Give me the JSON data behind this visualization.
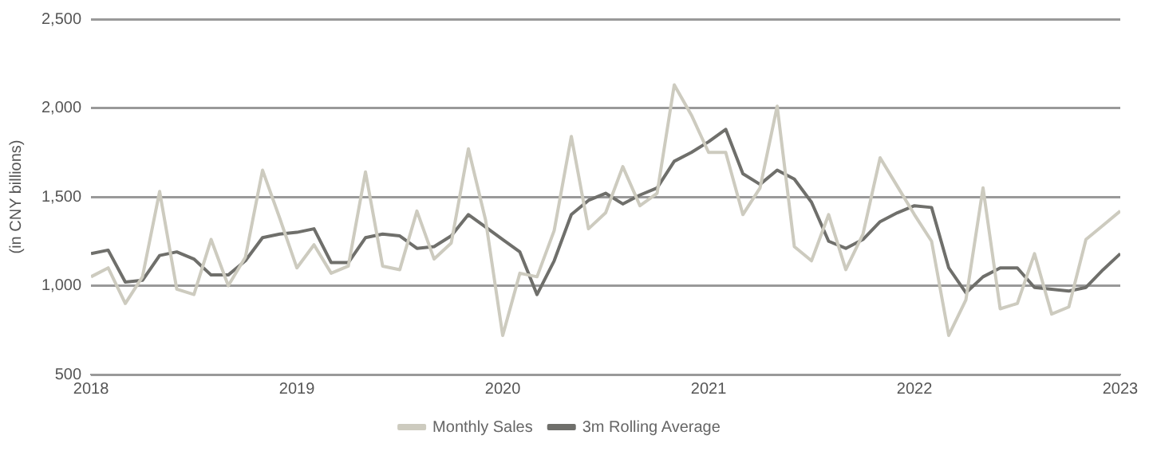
{
  "chart_data": {
    "type": "line",
    "ylabel": "(in CNY billions)",
    "x": [
      "2018-01",
      "2018-02",
      "2018-03",
      "2018-04",
      "2018-05",
      "2018-06",
      "2018-07",
      "2018-08",
      "2018-09",
      "2018-10",
      "2018-11",
      "2018-12",
      "2019-01",
      "2019-02",
      "2019-03",
      "2019-04",
      "2019-05",
      "2019-06",
      "2019-07",
      "2019-08",
      "2019-09",
      "2019-10",
      "2019-11",
      "2019-12",
      "2020-01",
      "2020-02",
      "2020-03",
      "2020-04",
      "2020-05",
      "2020-06",
      "2020-07",
      "2020-08",
      "2020-09",
      "2020-10",
      "2020-11",
      "2020-12",
      "2021-01",
      "2021-02",
      "2021-03",
      "2021-04",
      "2021-05",
      "2021-06",
      "2021-07",
      "2021-08",
      "2021-09",
      "2021-10",
      "2021-11",
      "2021-12",
      "2022-01",
      "2022-02",
      "2022-03",
      "2022-04",
      "2022-05",
      "2022-06",
      "2022-07",
      "2022-08",
      "2022-09",
      "2022-10",
      "2022-11",
      "2022-12",
      "2023-01"
    ],
    "series": [
      {
        "name": "Monthly Sales",
        "color": "#cdcbbf",
        "values": [
          1050,
          1100,
          900,
          1050,
          1530,
          980,
          950,
          1260,
          1000,
          1160,
          1650,
          1380,
          1100,
          1230,
          1070,
          1110,
          1640,
          1110,
          1090,
          1420,
          1150,
          1240,
          1770,
          1370,
          720,
          1070,
          1050,
          1310,
          1840,
          1320,
          1410,
          1670,
          1450,
          1520,
          2130,
          1960,
          1750,
          1750,
          1400,
          1550,
          2010,
          1220,
          1140,
          1400,
          1090,
          1290,
          1720,
          1560,
          1400,
          1250,
          720,
          920,
          1550,
          870,
          900,
          1180,
          840,
          880,
          1260,
          1340,
          1420
        ]
      },
      {
        "name": "3m Rolling Average",
        "color": "#6f6f6b",
        "values": [
          1180,
          1200,
          1020,
          1030,
          1170,
          1190,
          1150,
          1060,
          1060,
          1140,
          1270,
          1290,
          1300,
          1320,
          1130,
          1130,
          1270,
          1290,
          1280,
          1210,
          1220,
          1280,
          1400,
          1330,
          1260,
          1190,
          950,
          1140,
          1400,
          1480,
          1520,
          1460,
          1510,
          1550,
          1700,
          1750,
          1810,
          1880,
          1630,
          1570,
          1650,
          1600,
          1470,
          1250,
          1210,
          1260,
          1360,
          1410,
          1450,
          1440,
          1100,
          960,
          1050,
          1100,
          1100,
          990,
          980,
          970,
          990,
          1090,
          1180
        ]
      }
    ],
    "xlim": [
      "2018-01",
      "2023-01"
    ],
    "xticks": [
      "2018",
      "2019",
      "2020",
      "2021",
      "2022",
      "2023"
    ],
    "ylim": [
      500,
      2500
    ],
    "yticks": [
      500,
      {
        "value": 1000,
        "label": "1,000"
      },
      {
        "value": 1500,
        "label": "1,500"
      },
      {
        "value": 2000,
        "label": "2,000"
      },
      {
        "value": 2500,
        "label": "2,500"
      }
    ],
    "grid": "y",
    "legend": "bottom",
    "marker": "none",
    "line_style": "solid"
  }
}
